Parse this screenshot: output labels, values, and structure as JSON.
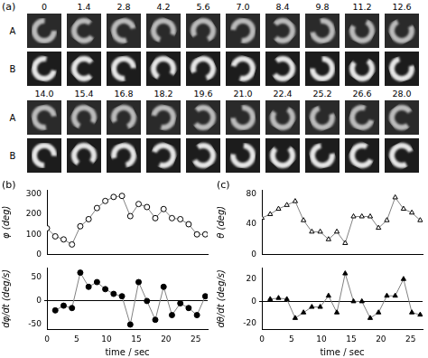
{
  "panel_a": {
    "label": "(a)",
    "rows": [
      {
        "times": [
          "0",
          "1.4",
          "2.8",
          "4.2",
          "5.6",
          "7.0",
          "8.4",
          "9.8",
          "11.2",
          "12.6"
        ],
        "row_labels": [
          "A",
          "B"
        ]
      },
      {
        "times": [
          "14.0",
          "15.4",
          "16.8",
          "18.2",
          "19.6",
          "21.0",
          "22.4",
          "25.2",
          "26.6",
          "28.0"
        ],
        "row_labels": [
          "A",
          "B"
        ]
      }
    ]
  },
  "chart_data": [
    {
      "type": "line",
      "label": "(b)",
      "y_label": "φ (deg)",
      "x": [
        0,
        1.4,
        2.8,
        4.2,
        5.6,
        7.0,
        8.4,
        9.8,
        11.2,
        12.6,
        14.0,
        15.4,
        16.8,
        18.2,
        19.6,
        21.0,
        22.4,
        23.8,
        25.2,
        26.6
      ],
      "values": [
        130,
        90,
        75,
        50,
        140,
        175,
        230,
        265,
        285,
        290,
        190,
        250,
        235,
        180,
        225,
        180,
        175,
        150,
        100,
        100
      ],
      "xlim": [
        0,
        27
      ],
      "xticks": [
        0,
        5,
        10,
        15,
        20,
        25
      ],
      "ylim": [
        0,
        320
      ],
      "yticks": [
        0,
        100,
        200,
        300
      ],
      "tick_labels": "y",
      "marker": "circle_open",
      "color": "#808080"
    },
    {
      "type": "line",
      "y_label": "dφ/dt (deg/s)",
      "x_label": "time / sec",
      "x": [
        1.4,
        2.8,
        4.2,
        5.6,
        7.0,
        8.4,
        9.8,
        11.2,
        12.6,
        14.0,
        15.4,
        16.8,
        18.2,
        19.6,
        21.0,
        22.4,
        23.8,
        25.2,
        26.6
      ],
      "values": [
        -20,
        -10,
        -15,
        60,
        30,
        40,
        25,
        15,
        10,
        -50,
        40,
        0,
        -40,
        30,
        -30,
        -5,
        -15,
        -30,
        10
      ],
      "xlim": [
        0,
        27
      ],
      "xticks": [
        0,
        5,
        10,
        15,
        20,
        25
      ],
      "ylim": [
        -60,
        70
      ],
      "yticks": [
        -50,
        0,
        50
      ],
      "marker": "circle",
      "color": "#808080"
    },
    {
      "type": "line",
      "label": "(c)",
      "y_label": "θ (deg)",
      "x": [
        0,
        1.4,
        2.8,
        4.2,
        5.6,
        7.0,
        8.4,
        9.8,
        11.2,
        12.6,
        14.0,
        15.4,
        16.8,
        18.2,
        19.6,
        21.0,
        22.4,
        23.8,
        25.2,
        26.6
      ],
      "values": [
        48,
        53,
        60,
        65,
        70,
        45,
        30,
        30,
        20,
        30,
        15,
        50,
        50,
        50,
        35,
        45,
        75,
        60,
        55,
        45
      ],
      "xlim": [
        0,
        27
      ],
      "xticks": [
        0,
        5,
        10,
        15,
        20,
        25
      ],
      "ylim": [
        0,
        85
      ],
      "yticks": [
        0,
        40,
        80
      ],
      "tick_labels": "y",
      "marker": "triangle_open",
      "color": "#808080"
    },
    {
      "type": "line",
      "y_label": "dθ/dt (deg/s)",
      "x_label": "time / sec",
      "x": [
        1.4,
        2.8,
        4.2,
        5.6,
        7.0,
        8.4,
        9.8,
        11.2,
        12.6,
        14.0,
        15.4,
        16.8,
        18.2,
        19.6,
        21.0,
        22.4,
        23.8,
        25.2,
        26.6
      ],
      "values": [
        2,
        3,
        2,
        -15,
        -10,
        -5,
        -5,
        5,
        -10,
        25,
        0,
        0,
        -15,
        -10,
        5,
        5,
        20,
        -10,
        -12
      ],
      "xlim": [
        0,
        27
      ],
      "xticks": [
        0,
        5,
        10,
        15,
        20,
        25
      ],
      "ylim": [
        -25,
        30
      ],
      "yticks": [
        -20,
        0,
        20
      ],
      "marker": "triangle",
      "color": "#808080"
    }
  ]
}
